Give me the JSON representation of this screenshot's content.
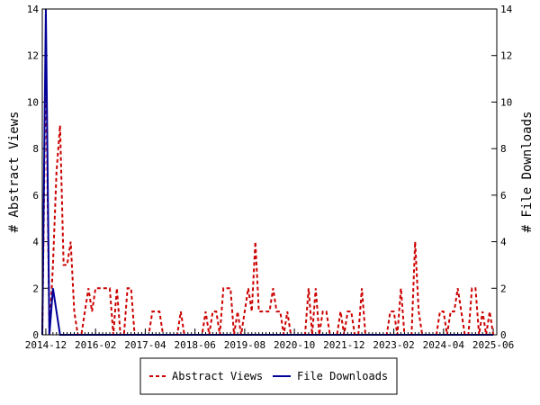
{
  "chart_data": {
    "type": "line",
    "x_ticks": [
      "2014-12",
      "2016-02",
      "2017-04",
      "2018-06",
      "2019-08",
      "2020-10",
      "2021-12",
      "2023-02",
      "2024-04",
      "2025-06"
    ],
    "y_ticks": [
      0,
      2,
      4,
      6,
      8,
      10,
      12,
      14
    ],
    "ylim": [
      0,
      14
    ],
    "y2lim": [
      0,
      14
    ],
    "xlim": [
      "2014-11",
      "2025-07"
    ],
    "ylabel": "# Abstract Views",
    "y2label": "# File Downloads",
    "legend_position": "bottom",
    "series": [
      {
        "name": "Abstract Views",
        "color": "#cc0000",
        "style": "dashed",
        "points": [
          [
            "2014-11",
            0
          ],
          [
            "2014-12",
            12
          ],
          [
            "2015-01",
            0
          ],
          [
            "2015-02",
            3
          ],
          [
            "2015-03",
            7
          ],
          [
            "2015-04",
            9
          ],
          [
            "2015-05",
            3
          ],
          [
            "2015-06",
            3
          ],
          [
            "2015-07",
            4
          ],
          [
            "2015-08",
            1
          ],
          [
            "2015-09",
            0
          ],
          [
            "2015-10",
            0
          ],
          [
            "2015-11",
            1
          ],
          [
            "2015-12",
            2
          ],
          [
            "2016-01",
            1
          ],
          [
            "2016-02",
            2
          ],
          [
            "2016-03",
            2
          ],
          [
            "2016-04",
            2
          ],
          [
            "2016-05",
            2
          ],
          [
            "2016-06",
            2
          ],
          [
            "2016-07",
            0
          ],
          [
            "2016-08",
            2
          ],
          [
            "2016-09",
            0
          ],
          [
            "2016-10",
            0
          ],
          [
            "2016-11",
            2
          ],
          [
            "2016-12",
            2
          ],
          [
            "2017-01",
            0
          ],
          [
            "2017-02",
            0
          ],
          [
            "2017-03",
            0
          ],
          [
            "2017-04",
            0
          ],
          [
            "2017-05",
            0
          ],
          [
            "2017-06",
            1
          ],
          [
            "2017-07",
            1
          ],
          [
            "2017-08",
            1
          ],
          [
            "2017-09",
            0
          ],
          [
            "2017-10",
            0
          ],
          [
            "2017-11",
            0
          ],
          [
            "2017-12",
            0
          ],
          [
            "2018-01",
            0
          ],
          [
            "2018-02",
            1
          ],
          [
            "2018-03",
            0
          ],
          [
            "2018-04",
            0
          ],
          [
            "2018-05",
            0
          ],
          [
            "2018-06",
            0
          ],
          [
            "2018-07",
            0
          ],
          [
            "2018-08",
            0
          ],
          [
            "2018-09",
            1
          ],
          [
            "2018-10",
            0
          ],
          [
            "2018-11",
            1
          ],
          [
            "2018-12",
            1
          ],
          [
            "2019-01",
            0
          ],
          [
            "2019-02",
            2
          ],
          [
            "2019-03",
            2
          ],
          [
            "2019-04",
            2
          ],
          [
            "2019-05",
            0
          ],
          [
            "2019-06",
            1
          ],
          [
            "2019-07",
            0
          ],
          [
            "2019-08",
            1
          ],
          [
            "2019-09",
            2
          ],
          [
            "2019-10",
            1
          ],
          [
            "2019-11",
            4
          ],
          [
            "2019-12",
            1
          ],
          [
            "2020-01",
            1
          ],
          [
            "2020-02",
            1
          ],
          [
            "2020-03",
            1
          ],
          [
            "2020-04",
            2
          ],
          [
            "2020-05",
            1
          ],
          [
            "2020-06",
            1
          ],
          [
            "2020-07",
            0
          ],
          [
            "2020-08",
            1
          ],
          [
            "2020-09",
            0
          ],
          [
            "2020-10",
            0
          ],
          [
            "2020-11",
            0
          ],
          [
            "2020-12",
            0
          ],
          [
            "2021-01",
            0
          ],
          [
            "2021-02",
            2
          ],
          [
            "2021-03",
            0
          ],
          [
            "2021-04",
            2
          ],
          [
            "2021-05",
            0
          ],
          [
            "2021-06",
            1
          ],
          [
            "2021-07",
            1
          ],
          [
            "2021-08",
            0
          ],
          [
            "2021-09",
            0
          ],
          [
            "2021-10",
            0
          ],
          [
            "2021-11",
            1
          ],
          [
            "2021-12",
            0
          ],
          [
            "2022-01",
            1
          ],
          [
            "2022-02",
            1
          ],
          [
            "2022-03",
            0
          ],
          [
            "2022-04",
            0
          ],
          [
            "2022-05",
            2
          ],
          [
            "2022-06",
            0
          ],
          [
            "2022-07",
            0
          ],
          [
            "2022-08",
            0
          ],
          [
            "2022-09",
            0
          ],
          [
            "2022-10",
            0
          ],
          [
            "2022-11",
            0
          ],
          [
            "2022-12",
            0
          ],
          [
            "2023-01",
            1
          ],
          [
            "2023-02",
            1
          ],
          [
            "2023-03",
            0
          ],
          [
            "2023-04",
            2
          ],
          [
            "2023-05",
            0
          ],
          [
            "2023-06",
            0
          ],
          [
            "2023-07",
            0
          ],
          [
            "2023-08",
            4
          ],
          [
            "2023-09",
            1
          ],
          [
            "2023-10",
            0
          ],
          [
            "2023-11",
            0
          ],
          [
            "2023-12",
            0
          ],
          [
            "2024-01",
            0
          ],
          [
            "2024-02",
            0
          ],
          [
            "2024-03",
            1
          ],
          [
            "2024-04",
            1
          ],
          [
            "2024-05",
            0
          ],
          [
            "2024-06",
            1
          ],
          [
            "2024-07",
            1
          ],
          [
            "2024-08",
            2
          ],
          [
            "2024-09",
            1
          ],
          [
            "2024-10",
            0
          ],
          [
            "2024-11",
            0
          ],
          [
            "2024-12",
            2
          ],
          [
            "2025-01",
            2
          ],
          [
            "2025-02",
            0
          ],
          [
            "2025-03",
            1
          ],
          [
            "2025-04",
            0
          ],
          [
            "2025-05",
            1
          ],
          [
            "2025-06",
            0
          ]
        ]
      },
      {
        "name": "File Downloads",
        "color": "#000099",
        "style": "solid",
        "points": [
          [
            "2014-11",
            0
          ],
          [
            "2014-12",
            14
          ],
          [
            "2015-01",
            0
          ],
          [
            "2015-02",
            2
          ],
          [
            "2015-03",
            1
          ],
          [
            "2015-04",
            0
          ],
          [
            "2015-05",
            0
          ],
          [
            "2015-06",
            0
          ],
          [
            "2015-07",
            0
          ],
          [
            "2015-08",
            0
          ],
          [
            "2015-09",
            0
          ],
          [
            "2015-10",
            0
          ],
          [
            "2015-11",
            0
          ],
          [
            "2015-12",
            0
          ],
          [
            "2016-06",
            0
          ],
          [
            "2017-06",
            0
          ],
          [
            "2018-06",
            0
          ],
          [
            "2019-06",
            0
          ],
          [
            "2020-06",
            0
          ],
          [
            "2021-06",
            0
          ],
          [
            "2022-06",
            0
          ],
          [
            "2023-06",
            0
          ],
          [
            "2024-06",
            0
          ],
          [
            "2025-06",
            0
          ]
        ]
      }
    ]
  }
}
